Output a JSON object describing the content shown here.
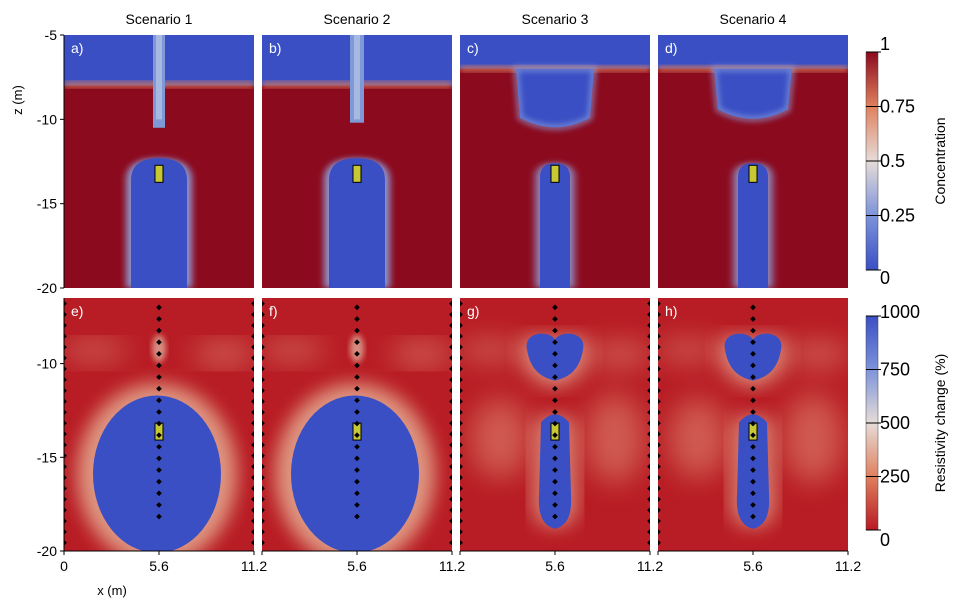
{
  "chart_data": {
    "type": "heatmap",
    "column_titles": [
      "Scenario 1",
      "Scenario 2",
      "Scenario 3",
      "Scenario 4"
    ],
    "panel_labels": [
      "a)",
      "b)",
      "c)",
      "d)",
      "e)",
      "f)",
      "g)",
      "h)"
    ],
    "top_row": {
      "ylabel": "z (m)",
      "ylim": [
        -20,
        -5
      ],
      "yticks": [
        -5,
        -10,
        -15,
        -20
      ],
      "colorbar": {
        "label": "Concentration",
        "range": [
          0,
          1
        ],
        "tick_labels": [
          "1",
          "0.75",
          "0.5",
          "0.25",
          "0"
        ],
        "tick_values": [
          1,
          0.75,
          0.5,
          0.25,
          0
        ]
      }
    },
    "bottom_row": {
      "ylim": [
        -20,
        -6.5
      ],
      "yticks": [
        -10,
        -15,
        -20
      ],
      "colorbar": {
        "label": "Resistivity change (%)",
        "range": [
          0,
          1000
        ],
        "tick_labels": [
          "1000",
          "750",
          "500",
          "250",
          "0"
        ],
        "tick_values": [
          1000,
          750,
          500,
          250,
          0
        ]
      }
    },
    "x_axis": {
      "label": "x (m)",
      "xlim": [
        0,
        11.2
      ],
      "xticks": [
        0,
        5.6,
        11.2
      ],
      "tick_labels": [
        "0",
        "5.6",
        "11.2"
      ]
    },
    "grid": false,
    "colors": {
      "high": "#8b0a1e",
      "mid": "#e8dcd6",
      "low": "#3a4fc4",
      "source_box": "#c8c832"
    }
  }
}
